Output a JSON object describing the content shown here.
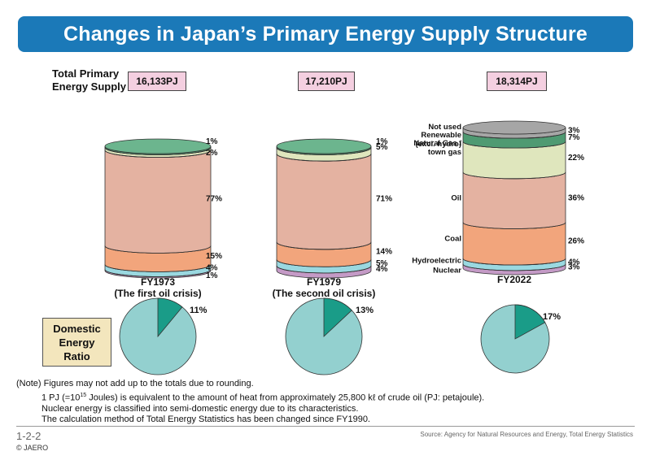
{
  "title": "Changes in Japan’s Primary Energy Supply Structure",
  "tpes_label_line1": "Total Primary",
  "tpes_label_line2": "Energy Supply",
  "ratio_label": [
    "Domestic",
    "Energy",
    "Ratio"
  ],
  "notes": {
    "line1": "(Note) Figures may not add up to the totals due to rounding.",
    "line2_pre": "1 PJ (=10",
    "line2_sup": "15",
    "line2_post": " Joules) is equivalent to the amount of heat from approximately 25,800 kℓ of crude oil (PJ: petajoule).",
    "line3": "Nuclear energy is classified into semi-domestic energy due to its characteristics.",
    "line4": "The calculation method of Total Energy Statistics has been changed since FY1990."
  },
  "page_number": "1-2-2",
  "copyright": "© JAERO",
  "source": "Source: Agency for Natural Resources and Energy, Total Energy Statistics",
  "chart_data": {
    "type": "stacked-cylinder",
    "categories_order_bottom_to_top": [
      "Nuclear",
      "Hydroelectric",
      "Coal",
      "Oil",
      "Natural Gas / town gas",
      "Renewable (excl. hydro)",
      "Not used"
    ],
    "category_labels": [
      {
        "key": "not_used",
        "lines": [
          "Not used"
        ]
      },
      {
        "key": "renewable",
        "lines": [
          "Renewable",
          "(excl. hydro)"
        ]
      },
      {
        "key": "gas",
        "lines": [
          "Natural Gas /",
          "town gas"
        ]
      },
      {
        "key": "oil",
        "lines": [
          "Oil"
        ]
      },
      {
        "key": "coal",
        "lines": [
          "Coal"
        ]
      },
      {
        "key": "hydro",
        "lines": [
          "Hydroelectric"
        ]
      },
      {
        "key": "nuclear",
        "lines": [
          "Nuclear"
        ]
      }
    ],
    "colors": {
      "nuclear": "#c49ac6",
      "hydro": "#9ad8e0",
      "coal": "#f2a57c",
      "oil": "#e4b2a1",
      "gas": "#dfe6bd",
      "renewable": "#4f9a72",
      "not_used": "#a6a6a6",
      "top_green": "#6cb58e",
      "pie_full": "#93d0cf",
      "pie_slice": "#1a9c88"
    },
    "years": [
      {
        "label": "FY1973",
        "sublabel": "(The first oil crisis)",
        "total": "16,133PJ",
        "segments": [
          {
            "key": "nuclear",
            "value": 1,
            "label": "1%"
          },
          {
            "key": "hydro",
            "value": 4,
            "label": "4%"
          },
          {
            "key": "coal",
            "value": 15,
            "label": "15%"
          },
          {
            "key": "oil",
            "value": 77,
            "label": "77%"
          },
          {
            "key": "gas",
            "value": 2,
            "label": "2%"
          },
          {
            "key": "renewable",
            "value": 1,
            "label": "1%"
          }
        ],
        "domestic_ratio": 11,
        "domestic_ratio_label": "11%"
      },
      {
        "label": "FY1979",
        "sublabel": "(The second oil crisis)",
        "total": "17,210PJ",
        "segments": [
          {
            "key": "nuclear",
            "value": 4,
            "label": "4%"
          },
          {
            "key": "hydro",
            "value": 5,
            "label": "5%"
          },
          {
            "key": "coal",
            "value": 14,
            "label": "14%"
          },
          {
            "key": "oil",
            "value": 71,
            "label": "71%"
          },
          {
            "key": "gas",
            "value": 5,
            "label": "5%"
          },
          {
            "key": "renewable",
            "value": 1,
            "label": "1%"
          }
        ],
        "domestic_ratio": 13,
        "domestic_ratio_label": "13%"
      },
      {
        "label": "FY2022",
        "sublabel": "",
        "total": "18,314PJ",
        "segments": [
          {
            "key": "nuclear",
            "value": 3,
            "label": "3%"
          },
          {
            "key": "hydro",
            "value": 4,
            "label": "4%"
          },
          {
            "key": "coal",
            "value": 26,
            "label": "26%"
          },
          {
            "key": "oil",
            "value": 36,
            "label": "36%"
          },
          {
            "key": "gas",
            "value": 22,
            "label": "22%"
          },
          {
            "key": "renewable",
            "value": 7,
            "label": "7%"
          },
          {
            "key": "not_used",
            "value": 3,
            "label": "3%"
          }
        ],
        "domestic_ratio": 17,
        "domestic_ratio_label": "17%"
      }
    ]
  }
}
